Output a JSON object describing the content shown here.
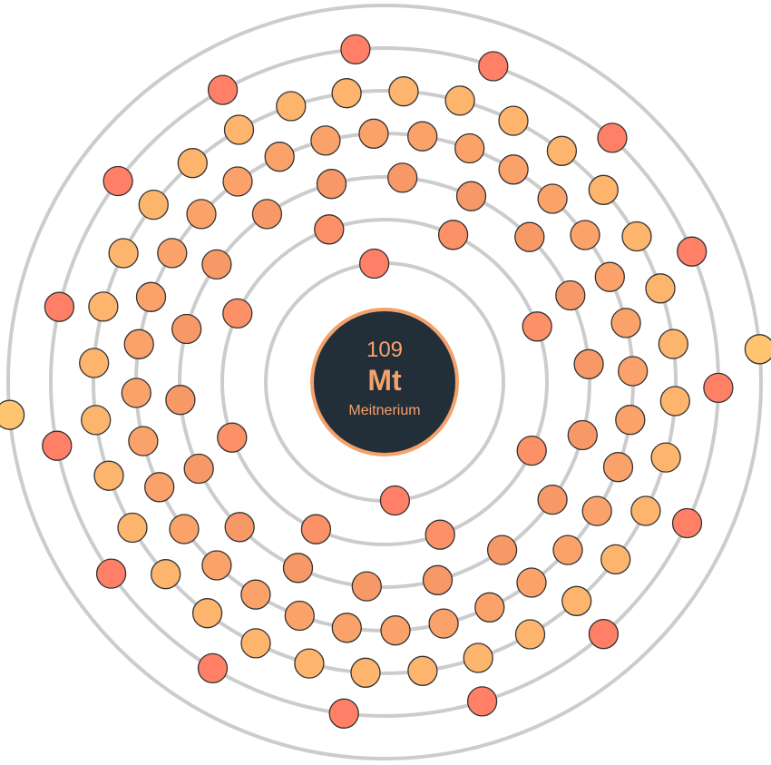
{
  "element": {
    "atomic_number": "109",
    "symbol": "Mt",
    "name": "Meitnerium"
  },
  "shells": [
    {
      "shell": 1,
      "electrons": 2,
      "color": "#ff8066"
    },
    {
      "shell": 2,
      "electrons": 8,
      "color": "#fc9066"
    },
    {
      "shell": 3,
      "electrons": 18,
      "color": "#f79966"
    },
    {
      "shell": 4,
      "electrons": 32,
      "color": "#fba26a"
    },
    {
      "shell": 5,
      "electrons": 32,
      "color": "#fdb46d"
    },
    {
      "shell": 6,
      "electrons": 15,
      "color": "#ff8066"
    },
    {
      "shell": 7,
      "electrons": 2,
      "color": "#ffc46f"
    }
  ],
  "colors": {
    "ring": "#cccccc",
    "nucleus_fill": "#222e38",
    "nucleus_stroke": "#f4a26c",
    "nucleus_text": "#f4a26c",
    "electron_outline": "#333333"
  }
}
